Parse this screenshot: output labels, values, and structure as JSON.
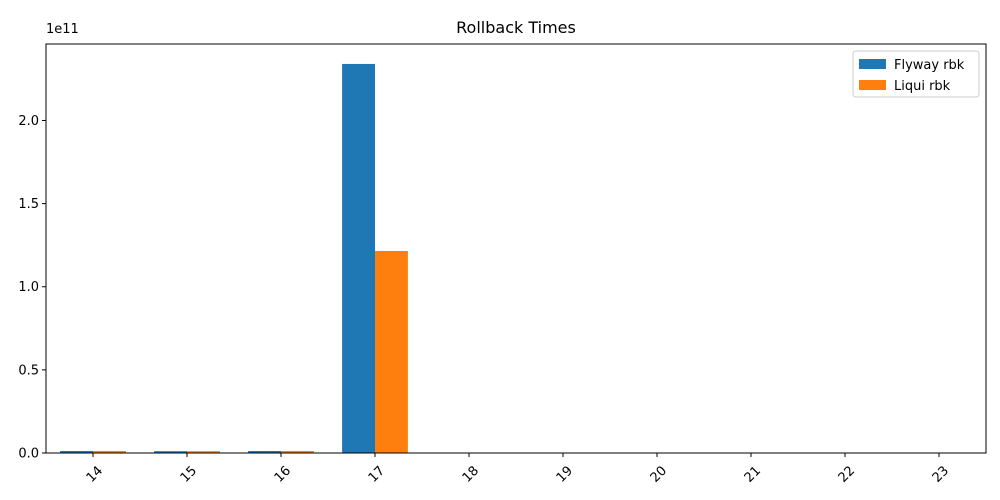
{
  "chart_data": {
    "type": "bar",
    "title": "Rollback Times",
    "xlabel": "",
    "ylabel": "",
    "offset_text": "1e11",
    "categories": [
      "14",
      "15",
      "16",
      "17",
      "18",
      "19",
      "20",
      "21",
      "22",
      "23"
    ],
    "series": [
      {
        "name": "Flyway rbk",
        "color": "#1f77b4",
        "values": [
          1200000000.0,
          1100000000.0,
          1200000000.0,
          234000000000.0,
          0,
          0,
          0,
          0,
          0,
          0
        ]
      },
      {
        "name": "Liqui rbk",
        "color": "#ff7f0e",
        "values": [
          1200000000.0,
          1100000000.0,
          1200000000.0,
          121500000000.0,
          0,
          0,
          0,
          0,
          0,
          0
        ]
      }
    ],
    "ylim": [
      0,
      246000000000.0
    ],
    "yticks": [
      0,
      50000000000.0,
      100000000000.0,
      150000000000.0,
      200000000000.0
    ],
    "ytick_labels": [
      "0.0",
      "0.5",
      "1.0",
      "1.5",
      "2.0"
    ],
    "xtick_rotation": 45,
    "grid": false,
    "legend_position": "top-right"
  }
}
